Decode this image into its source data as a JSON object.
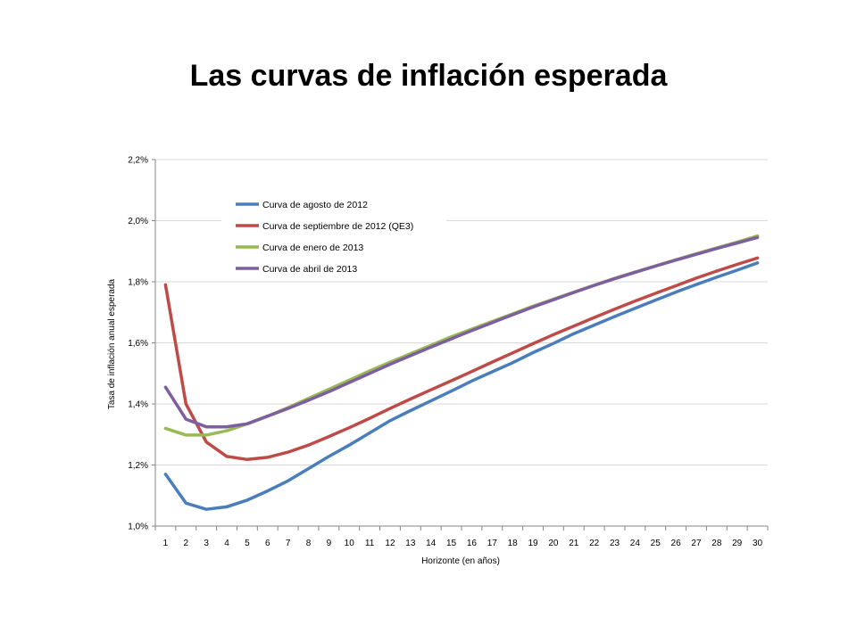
{
  "page": {
    "title": "Las curvas de inflación esperada"
  },
  "chart_data": {
    "type": "line",
    "title": "",
    "xlabel": "Horizonte (en años)",
    "ylabel": "Tasa de inflación anual esperada",
    "x": [
      1,
      2,
      3,
      4,
      5,
      6,
      7,
      8,
      9,
      10,
      11,
      12,
      13,
      14,
      15,
      16,
      17,
      18,
      19,
      20,
      21,
      22,
      23,
      24,
      25,
      26,
      27,
      28,
      29,
      30
    ],
    "ylim": [
      1.0,
      2.2
    ],
    "yticks": [
      1.0,
      1.2,
      1.4,
      1.6,
      1.8,
      2.0,
      2.2
    ],
    "ytick_labels": [
      "1,0%",
      "1,2%",
      "1,4%",
      "1,6%",
      "1,8%",
      "2,0%",
      "2,2%"
    ],
    "grid": "horizontal",
    "legend_position": "top-left",
    "series": [
      {
        "name": "Curva de agosto de 2012",
        "color": "#4a7ebb",
        "values": [
          1.17,
          1.075,
          1.055,
          1.063,
          1.085,
          1.115,
          1.148,
          1.188,
          1.228,
          1.265,
          1.305,
          1.345,
          1.378,
          1.41,
          1.442,
          1.475,
          1.505,
          1.535,
          1.568,
          1.598,
          1.63,
          1.658,
          1.686,
          1.713,
          1.74,
          1.766,
          1.791,
          1.815,
          1.838,
          1.862
        ]
      },
      {
        "name": "Curva de septiembre de 2012 (QE3)",
        "color": "#be4b48",
        "values": [
          1.79,
          1.4,
          1.275,
          1.228,
          1.218,
          1.225,
          1.242,
          1.265,
          1.293,
          1.322,
          1.353,
          1.385,
          1.416,
          1.446,
          1.476,
          1.506,
          1.537,
          1.567,
          1.597,
          1.627,
          1.655,
          1.683,
          1.71,
          1.737,
          1.762,
          1.787,
          1.812,
          1.835,
          1.857,
          1.878
        ]
      },
      {
        "name": "Curva de enero de 2013",
        "color": "#98b954",
        "values": [
          1.32,
          1.298,
          1.298,
          1.312,
          1.335,
          1.36,
          1.388,
          1.418,
          1.448,
          1.478,
          1.508,
          1.537,
          1.564,
          1.592,
          1.62,
          1.645,
          1.67,
          1.695,
          1.72,
          1.743,
          1.766,
          1.789,
          1.811,
          1.832,
          1.852,
          1.872,
          1.892,
          1.911,
          1.93,
          1.95
        ]
      },
      {
        "name": "Curva de abril de 2013",
        "color": "#7d5fa0",
        "values": [
          1.455,
          1.35,
          1.325,
          1.325,
          1.335,
          1.36,
          1.385,
          1.412,
          1.44,
          1.47,
          1.5,
          1.53,
          1.558,
          1.586,
          1.613,
          1.64,
          1.666,
          1.692,
          1.717,
          1.741,
          1.765,
          1.788,
          1.81,
          1.831,
          1.851,
          1.871,
          1.89,
          1.909,
          1.927,
          1.945
        ]
      }
    ]
  }
}
